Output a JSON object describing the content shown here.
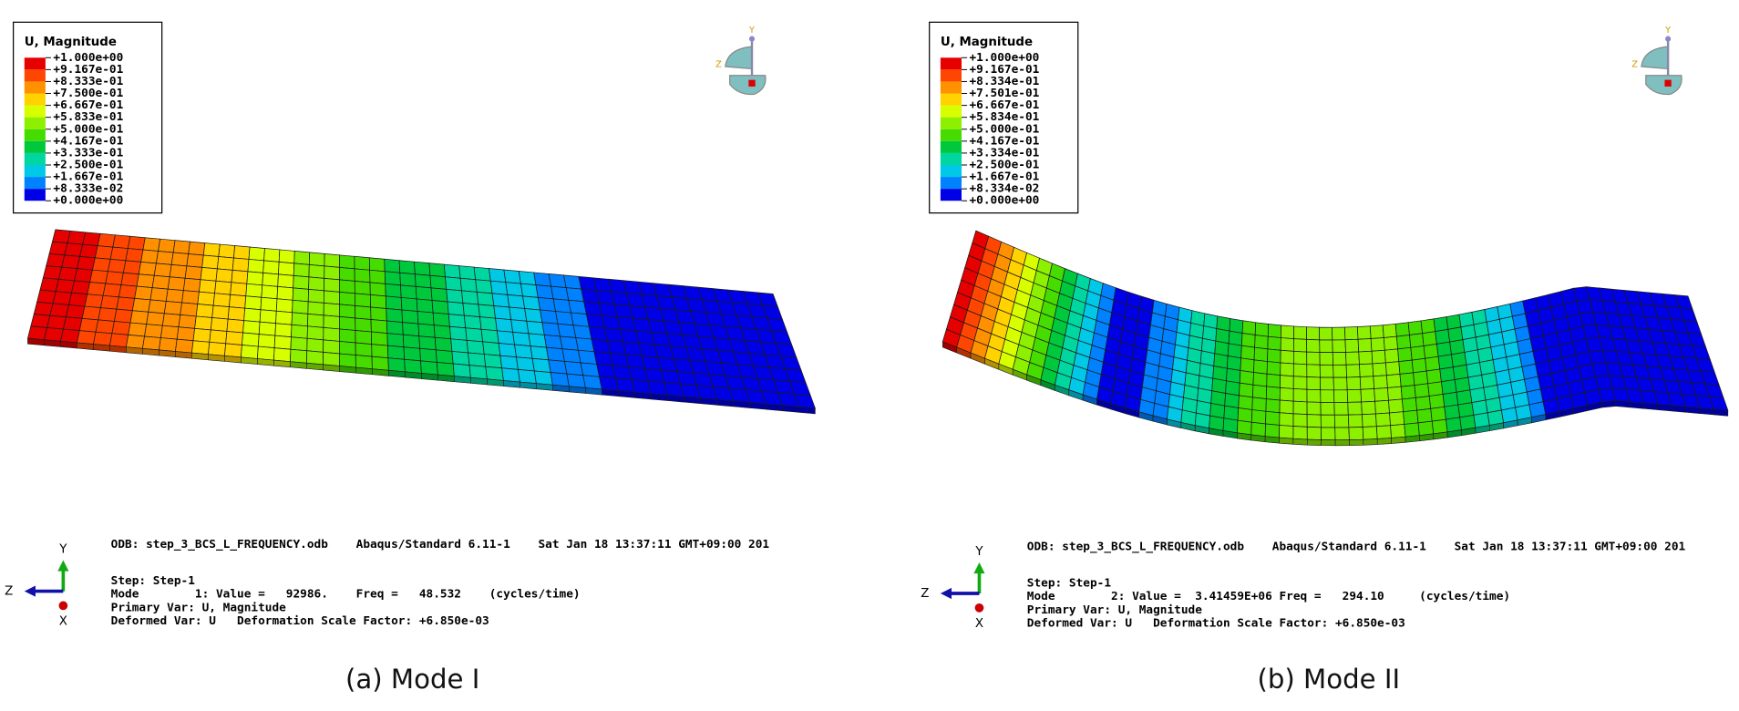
{
  "panels": [
    {
      "legend": {
        "title": "U, Magnitude",
        "labels": [
          "+1.000e+00",
          "+9.167e-01",
          "+8.333e-01",
          "+7.500e-01",
          "+6.667e-01",
          "+5.833e-01",
          "+5.000e-01",
          "+4.167e-01",
          "+3.333e-01",
          "+2.500e-01",
          "+1.667e-01",
          "+8.333e-02",
          "+0.000e+00"
        ],
        "colors": [
          "#e60000",
          "#ff4600",
          "#ff9100",
          "#ffd200",
          "#d7ff00",
          "#8cf000",
          "#46dc00",
          "#00c83c",
          "#00d7a0",
          "#00c8e6",
          "#0082ff",
          "#0000e6"
        ]
      },
      "view_triad": {
        "y": "Y",
        "z": "Z"
      },
      "info": {
        "odb": "ODB: step_3_BCS_L_FREQUENCY.odb    Abaqus/Standard 6.11-1    Sat Jan 18 13:37:11 GMT+09:00 201",
        "step": "Step: Step-1",
        "mode": "Mode        1: Value =   92986.    Freq =   48.532    (cycles/time)",
        "primary": "Primary Var: U, Magnitude",
        "deformed": "Deformed Var: U   Deformation Scale Factor: +6.850e-03"
      },
      "axis_triad": {
        "y": "Y",
        "z": "Z",
        "x": "X"
      },
      "caption": "(a) Mode I"
    },
    {
      "legend": {
        "title": "U, Magnitude",
        "labels": [
          "+1.000e+00",
          "+9.167e-01",
          "+8.334e-01",
          "+7.501e-01",
          "+6.667e-01",
          "+5.834e-01",
          "+5.000e-01",
          "+4.167e-01",
          "+3.334e-01",
          "+2.500e-01",
          "+1.667e-01",
          "+8.334e-02",
          "+0.000e+00"
        ],
        "colors": [
          "#e60000",
          "#ff4600",
          "#ff9100",
          "#ffd200",
          "#d7ff00",
          "#8cf000",
          "#46dc00",
          "#00c83c",
          "#00d7a0",
          "#00c8e6",
          "#0082ff",
          "#0000e6"
        ]
      },
      "view_triad": {
        "y": "Y",
        "z": "Z"
      },
      "info": {
        "odb": "ODB: step_3_BCS_L_FREQUENCY.odb    Abaqus/Standard 6.11-1    Sat Jan 18 13:37:11 GMT+09:00 201",
        "step": "Step: Step-1",
        "mode": "Mode        2: Value =  3.41459E+06 Freq =   294.10     (cycles/time)",
        "primary": "Primary Var: U, Magnitude",
        "deformed": "Deformed Var: U   Deformation Scale Factor: +6.850e-03"
      },
      "axis_triad": {
        "y": "Y",
        "z": "Z",
        "x": "X"
      },
      "caption": "(b) Mode II"
    }
  ]
}
